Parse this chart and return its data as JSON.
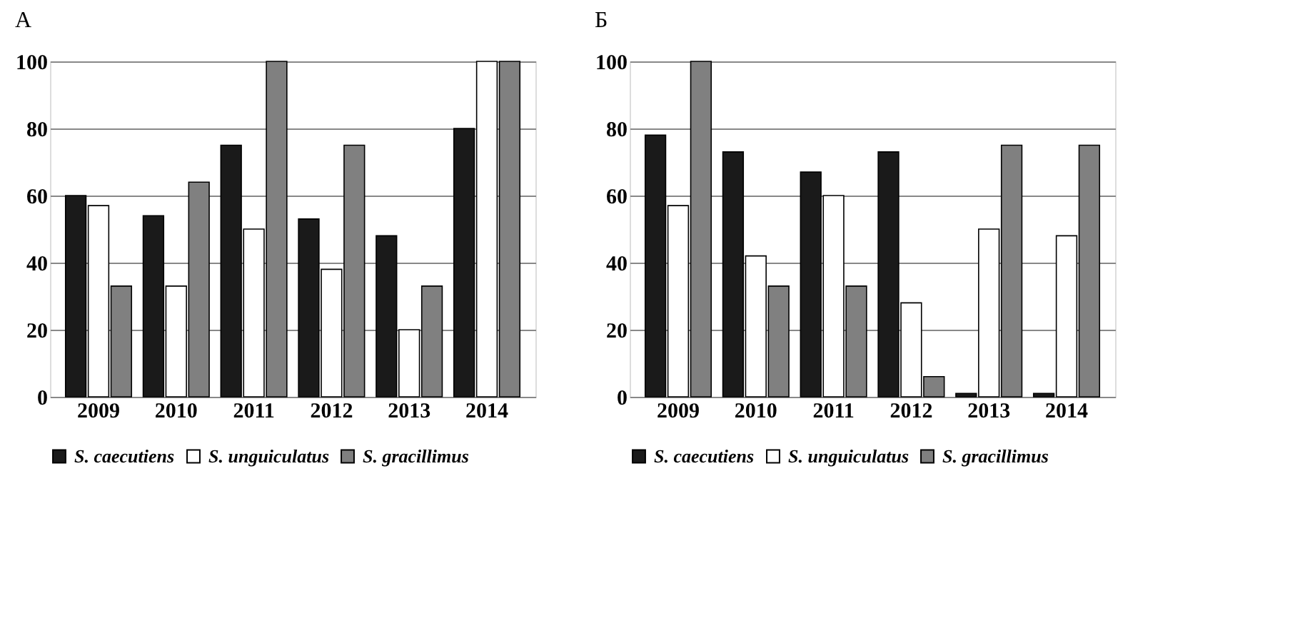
{
  "chart_data": [
    {
      "type": "bar",
      "title": "А",
      "categories": [
        "2009",
        "2010",
        "2011",
        "2012",
        "2013",
        "2014"
      ],
      "series": [
        {
          "name": "S. caecutiens",
          "color": "#1a1a1a",
          "values": [
            60,
            54,
            75,
            53,
            48,
            80
          ]
        },
        {
          "name": "S. unguiculatus",
          "color": "#ffffff",
          "values": [
            57,
            33,
            50,
            38,
            20,
            100
          ]
        },
        {
          "name": "S. gracillimus",
          "color": "#808080",
          "values": [
            33,
            64,
            100,
            75,
            33,
            100
          ]
        }
      ],
      "ylim": [
        0,
        100
      ],
      "yticks": [
        0,
        20,
        40,
        60,
        80,
        100
      ],
      "grid": "y",
      "legend": "bottom"
    },
    {
      "type": "bar",
      "title": "Б",
      "categories": [
        "2009",
        "2010",
        "2011",
        "2012",
        "2013",
        "2014"
      ],
      "series": [
        {
          "name": "S. caecutiens",
          "color": "#1a1a1a",
          "values": [
            78,
            73,
            67,
            73,
            1,
            1
          ]
        },
        {
          "name": "S. unguiculatus",
          "color": "#ffffff",
          "values": [
            57,
            42,
            60,
            28,
            50,
            48
          ]
        },
        {
          "name": "S. gracillimus",
          "color": "#808080",
          "values": [
            100,
            33,
            33,
            6,
            75,
            75
          ]
        }
      ],
      "ylim": [
        0,
        100
      ],
      "yticks": [
        0,
        20,
        40,
        60,
        80,
        100
      ],
      "grid": "y",
      "legend": "bottom"
    }
  ]
}
